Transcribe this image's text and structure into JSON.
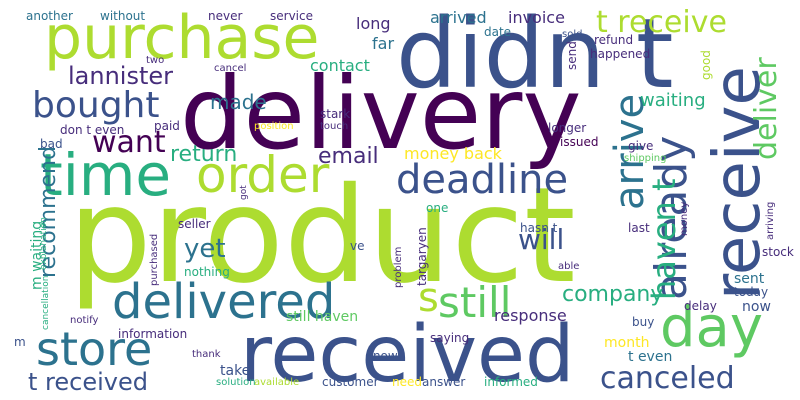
{
  "palette": {
    "dark_purple": "#440154",
    "indigo": "#472d7b",
    "slate_blue": "#3b528b",
    "steel_blue": "#2c728e",
    "teal": "#21918c",
    "sea_green": "#28ae80",
    "green": "#5ec962",
    "yellow_green": "#addc30",
    "yellow": "#fde725"
  },
  "words": [
    {
      "text": "product",
      "color": "#addc30"
    },
    {
      "text": "delivery",
      "color": "#440154"
    },
    {
      "text": "didn t",
      "color": "#3b528b"
    },
    {
      "text": "received",
      "color": "#3b528b"
    },
    {
      "text": "purchase",
      "color": "#addc30"
    },
    {
      "text": "time",
      "color": "#28ae80"
    },
    {
      "text": "order",
      "color": "#addc30"
    },
    {
      "text": "delivered",
      "color": "#2c728e"
    },
    {
      "text": "receive",
      "color": "#3b528b"
    },
    {
      "text": "day",
      "color": "#5ec962"
    },
    {
      "text": "store",
      "color": "#2c728e"
    },
    {
      "text": "deadline",
      "color": "#3b528b"
    },
    {
      "text": "t receive",
      "color": "#addc30"
    },
    {
      "text": "still",
      "color": "#5ec962"
    },
    {
      "text": "bought",
      "color": "#3b528b"
    },
    {
      "text": "already",
      "color": "#3b528b"
    },
    {
      "text": "arrive",
      "color": "#2c728e"
    },
    {
      "text": "deliver",
      "color": "#5ec962"
    },
    {
      "text": "haven t",
      "color": "#28ae80"
    },
    {
      "text": "canceled",
      "color": "#3b528b"
    },
    {
      "text": "t received",
      "color": "#3b528b"
    },
    {
      "text": "want",
      "color": "#440154"
    },
    {
      "text": "s",
      "color": "#addc30"
    },
    {
      "text": "lannister",
      "color": "#472d7b"
    },
    {
      "text": "return",
      "color": "#28ae80"
    },
    {
      "text": "email",
      "color": "#472d7b"
    },
    {
      "text": "company",
      "color": "#28ae80"
    },
    {
      "text": "made",
      "color": "#2c728e"
    },
    {
      "text": "recommend",
      "color": "#2c728e"
    },
    {
      "text": "will",
      "color": "#3b528b"
    },
    {
      "text": "yet",
      "color": "#2c728e"
    },
    {
      "text": "arrived",
      "color": "#2c728e"
    },
    {
      "text": "invoice",
      "color": "#472d7b"
    },
    {
      "text": "waiting",
      "color": "#28ae80"
    },
    {
      "text": "money back",
      "color": "#fde725"
    },
    {
      "text": "response",
      "color": "#472d7b"
    },
    {
      "text": "long",
      "color": "#472d7b"
    },
    {
      "text": "contact",
      "color": "#28ae80"
    },
    {
      "text": "far",
      "color": "#2c728e"
    },
    {
      "text": "date",
      "color": "#2c728e"
    },
    {
      "text": "sold",
      "color": "#3b528b"
    },
    {
      "text": "refund",
      "color": "#472d7b"
    },
    {
      "text": "happened",
      "color": "#472d7b"
    },
    {
      "text": "send",
      "color": "#472d7b"
    },
    {
      "text": "good",
      "color": "#addc30"
    },
    {
      "text": "m waiting",
      "color": "#28ae80"
    },
    {
      "text": "sent",
      "color": "#2c728e"
    },
    {
      "text": "today",
      "color": "#3b528b"
    },
    {
      "text": "delay",
      "color": "#472d7b"
    },
    {
      "text": "now",
      "color": "#3b528b"
    },
    {
      "text": "month",
      "color": "#fde725"
    },
    {
      "text": "t even",
      "color": "#2c728e"
    },
    {
      "text": "buy",
      "color": "#3b528b"
    },
    {
      "text": "stock",
      "color": "#472d7b"
    },
    {
      "text": "last",
      "color": "#472d7b"
    },
    {
      "text": "hasn t",
      "color": "#3b528b"
    },
    {
      "text": "targaryen",
      "color": "#472d7b"
    },
    {
      "text": "still haven",
      "color": "#5ec962"
    },
    {
      "text": "information",
      "color": "#472d7b"
    },
    {
      "text": "take",
      "color": "#3b528b"
    },
    {
      "text": "customer",
      "color": "#3b528b"
    },
    {
      "text": "need",
      "color": "#fde725"
    },
    {
      "text": "answer",
      "color": "#3b528b"
    },
    {
      "text": "informed",
      "color": "#28ae80"
    },
    {
      "text": "available",
      "color": "#addc30"
    },
    {
      "text": "solution",
      "color": "#28ae80"
    },
    {
      "text": "saying",
      "color": "#472d7b"
    },
    {
      "text": "know",
      "color": "#3b528b"
    },
    {
      "text": "nothing",
      "color": "#28ae80"
    },
    {
      "text": "seller",
      "color": "#472d7b"
    },
    {
      "text": "ve",
      "color": "#3b528b"
    },
    {
      "text": "give",
      "color": "#472d7b"
    },
    {
      "text": "issued",
      "color": "#440154"
    },
    {
      "text": "longer",
      "color": "#472d7b"
    },
    {
      "text": "shipping",
      "color": "#5ec962"
    },
    {
      "text": "one",
      "color": "#28ae80"
    },
    {
      "text": "stark",
      "color": "#472d7b"
    },
    {
      "text": "touch",
      "color": "#472d7b"
    },
    {
      "text": "position",
      "color": "#fde725"
    },
    {
      "text": "paid",
      "color": "#472d7b"
    },
    {
      "text": "bad",
      "color": "#3b528b"
    },
    {
      "text": "don t even",
      "color": "#472d7b"
    },
    {
      "text": "another",
      "color": "#2c728e"
    },
    {
      "text": "without",
      "color": "#2c728e"
    },
    {
      "text": "never",
      "color": "#472d7b"
    },
    {
      "text": "service",
      "color": "#472d7b"
    },
    {
      "text": "two",
      "color": "#472d7b"
    },
    {
      "text": "cancel",
      "color": "#472d7b"
    },
    {
      "text": "explanation",
      "color": "#28ae80"
    },
    {
      "text": "cancellation",
      "color": "#28ae80"
    },
    {
      "text": "purchased",
      "color": "#472d7b"
    },
    {
      "text": "notify",
      "color": "#472d7b"
    },
    {
      "text": "problem",
      "color": "#472d7b"
    },
    {
      "text": "able",
      "color": "#472d7b"
    },
    {
      "text": "arriving",
      "color": "#472d7b"
    },
    {
      "text": "money",
      "color": "#472d7b"
    },
    {
      "text": "thank",
      "color": "#472d7b"
    },
    {
      "text": "got",
      "color": "#472d7b"
    },
    {
      "text": "m",
      "color": "#3b528b"
    }
  ]
}
